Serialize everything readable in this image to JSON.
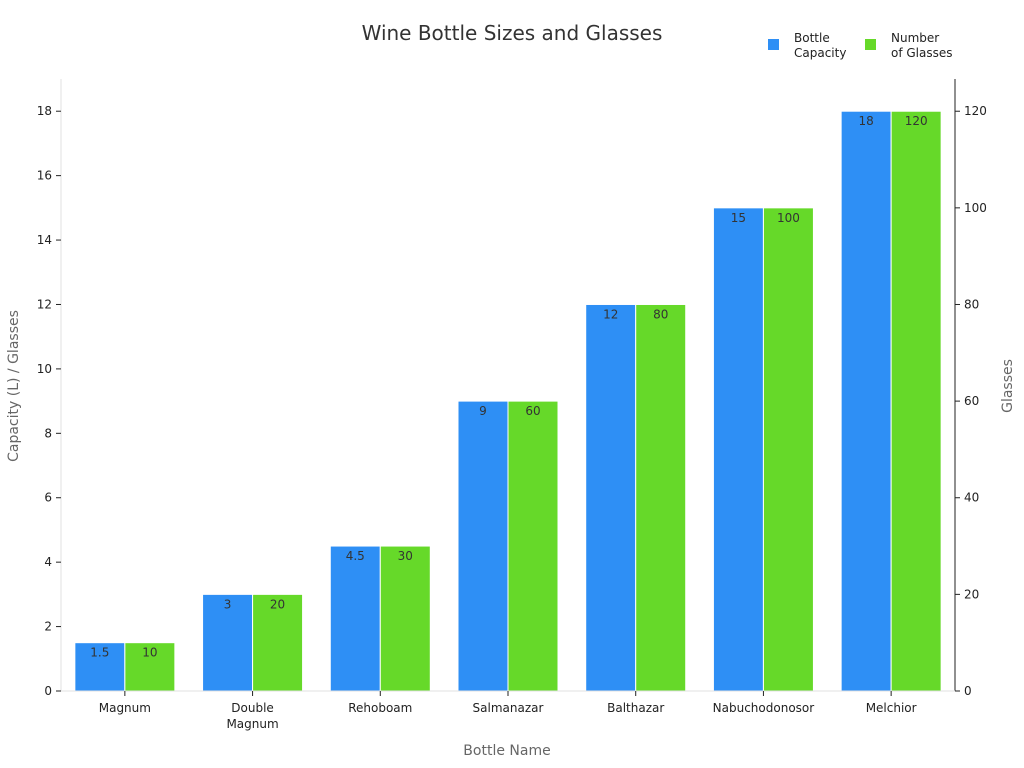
{
  "chart_data": {
    "type": "bar",
    "title": "Wine Bottle Sizes and Glasses",
    "xlabel": "Bottle Name",
    "ylabel": "Capacity (L) / Glasses",
    "y2label": "Glasses",
    "categories": [
      [
        "Magnum"
      ],
      [
        "Double",
        "Magnum"
      ],
      [
        "Rehoboam"
      ],
      [
        "Salmanazar"
      ],
      [
        "Balthazar"
      ],
      [
        "Nabuchodonosor"
      ],
      [
        "Melchior"
      ]
    ],
    "series": [
      {
        "name": [
          "Bottle",
          "Capacity"
        ],
        "axis": "left",
        "color": "#2e8ff5",
        "values": [
          1.5,
          3,
          4.5,
          9,
          12,
          15,
          18
        ],
        "labels": [
          "1.5",
          "3",
          "4.5",
          "9",
          "12",
          "15",
          "18"
        ]
      },
      {
        "name": [
          "Number",
          "of Glasses"
        ],
        "axis": "right",
        "color": "#66d929",
        "values": [
          10,
          20,
          30,
          60,
          80,
          100,
          120
        ],
        "labels": [
          "10",
          "20",
          "30",
          "60",
          "80",
          "100",
          "120"
        ]
      }
    ],
    "ylim": [
      0,
      19
    ],
    "yticks": [
      "0",
      "2",
      "4",
      "6",
      "8",
      "10",
      "12",
      "14",
      "16",
      "18"
    ],
    "y2lim": [
      0,
      126.67
    ],
    "y2ticks": [
      "0",
      "20",
      "40",
      "60",
      "80",
      "100",
      "120"
    ],
    "legend": "top-right",
    "grid": false
  }
}
